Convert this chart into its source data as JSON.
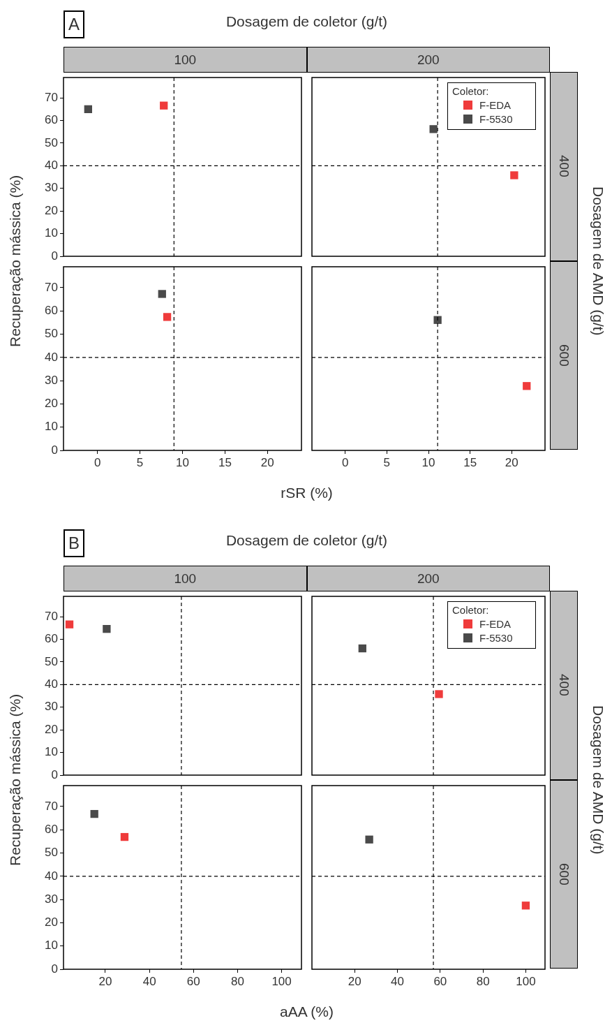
{
  "chart_data": [
    {
      "type": "scatter",
      "title": "100",
      "ylabel": "Recuperação mássica (%)",
      "annotations": [
        "A",
        "Dosagem de coletor (g/t)"
      ],
      "xlim": [
        -4,
        24
      ],
      "xticks": [
        0,
        5,
        10,
        15,
        20
      ],
      "ylim": [
        0,
        79
      ],
      "yticks": [
        0,
        10,
        20,
        30,
        40,
        50,
        60,
        70
      ],
      "tick_labels": "y",
      "marker": "square",
      "grid": false,
      "series": [
        {
          "color": "#ef3b3b",
          "x": [
            7.8
          ],
          "values": [
            66.6
          ]
        },
        {
          "color": "#4a4a4a",
          "x": [
            -1.1
          ],
          "values": [
            65
          ]
        }
      ],
      "ref_lines": [
        {
          "axis": "x",
          "value": 9,
          "line_style": "dashed",
          "color": "#000000"
        },
        {
          "axis": "y",
          "value": 40,
          "line_style": "dashed",
          "color": "#000000"
        }
      ]
    },
    {
      "type": "scatter",
      "title": "200",
      "y2label": "400",
      "annotations": [
        "Dosagem de AMD (g/t)"
      ],
      "xlim": [
        -4,
        24
      ],
      "xticks": [
        0,
        5,
        10,
        15,
        20
      ],
      "ylim": [
        0,
        79
      ],
      "yticks": [
        0,
        10,
        20,
        30,
        40,
        50,
        60,
        70
      ],
      "tick_labels": false,
      "marker": "square",
      "grid": false,
      "legend": "top right",
      "legend_title": "Coletor:",
      "series": [
        {
          "name": "F-EDA",
          "color": "#ef3b3b",
          "x": [
            20.3
          ],
          "values": [
            35.8
          ]
        },
        {
          "name": "F-5530",
          "color": "#4a4a4a",
          "x": [
            10.6
          ],
          "values": [
            56.2
          ]
        }
      ],
      "ref_lines": [
        {
          "axis": "x",
          "value": 11.1,
          "line_style": "dashed",
          "color": "#000000"
        },
        {
          "axis": "y",
          "value": 40,
          "line_style": "dashed",
          "color": "#000000"
        }
      ]
    },
    {
      "type": "scatter",
      "xlabel": "rSR (%)",
      "xlim": [
        -4,
        24
      ],
      "xticks": [
        0,
        5,
        10,
        15,
        20
      ],
      "ylim": [
        0,
        79
      ],
      "yticks": [
        0,
        10,
        20,
        30,
        40,
        50,
        60,
        70
      ],
      "marker": "square",
      "grid": false,
      "series": [
        {
          "color": "#ef3b3b",
          "x": [
            8.2
          ],
          "values": [
            57.4
          ]
        },
        {
          "color": "#4a4a4a",
          "x": [
            7.6
          ],
          "values": [
            67.3
          ]
        }
      ],
      "ref_lines": [
        {
          "axis": "x",
          "value": 9,
          "line_style": "dashed",
          "color": "#000000"
        },
        {
          "axis": "y",
          "value": 40,
          "line_style": "dashed",
          "color": "#000000"
        }
      ]
    },
    {
      "type": "scatter",
      "y2label": "600",
      "xlim": [
        -4,
        24
      ],
      "xticks": [
        0,
        5,
        10,
        15,
        20
      ],
      "ylim": [
        0,
        79
      ],
      "yticks": [
        0,
        10,
        20,
        30,
        40,
        50,
        60,
        70
      ],
      "tick_labels": "x",
      "marker": "square",
      "grid": false,
      "series": [
        {
          "color": "#ef3b3b",
          "x": [
            21.8
          ],
          "values": [
            27.7
          ]
        },
        {
          "color": "#4a4a4a",
          "x": [
            11.1
          ],
          "values": [
            56.1
          ]
        }
      ],
      "ref_lines": [
        {
          "axis": "x",
          "value": 11.1,
          "line_style": "dashed",
          "color": "#000000"
        },
        {
          "axis": "y",
          "value": 40,
          "line_style": "dashed",
          "color": "#000000"
        }
      ]
    },
    {
      "type": "scatter",
      "title": "100",
      "ylabel": "Recuperação mássica (%)",
      "annotations": [
        "B",
        "Dosagem de coletor (g/t)"
      ],
      "xlim": [
        1,
        109
      ],
      "xticks": [
        20,
        40,
        60,
        80,
        100
      ],
      "ylim": [
        0,
        79
      ],
      "yticks": [
        0,
        10,
        20,
        30,
        40,
        50,
        60,
        70
      ],
      "tick_labels": "y",
      "marker": "square",
      "grid": false,
      "series": [
        {
          "color": "#ef3b3b",
          "x": [
            3.7
          ],
          "values": [
            66.6
          ]
        },
        {
          "color": "#4a4a4a",
          "x": [
            20.6
          ],
          "values": [
            64.6
          ]
        }
      ],
      "ref_lines": [
        {
          "axis": "x",
          "value": 54.5,
          "line_style": "dashed",
          "color": "#000000"
        },
        {
          "axis": "y",
          "value": 40,
          "line_style": "dashed",
          "color": "#000000"
        }
      ]
    },
    {
      "type": "scatter",
      "title": "200",
      "y2label": "400",
      "annotations": [
        "Dosagem de AMD (g/t)"
      ],
      "xlim": [
        0,
        109
      ],
      "xticks": [
        20,
        40,
        60,
        80,
        100
      ],
      "ylim": [
        0,
        79
      ],
      "yticks": [
        0,
        10,
        20,
        30,
        40,
        50,
        60,
        70
      ],
      "tick_labels": false,
      "marker": "square",
      "grid": false,
      "legend": "top right",
      "legend_title": "Coletor:",
      "series": [
        {
          "name": "F-EDA",
          "color": "#ef3b3b",
          "x": [
            59.4
          ],
          "values": [
            35.8
          ]
        },
        {
          "name": "F-5530",
          "color": "#4a4a4a",
          "x": [
            23.6
          ],
          "values": [
            56
          ]
        }
      ],
      "ref_lines": [
        {
          "axis": "x",
          "value": 56.8,
          "line_style": "dashed",
          "color": "#000000"
        },
        {
          "axis": "y",
          "value": 40,
          "line_style": "dashed",
          "color": "#000000"
        }
      ]
    },
    {
      "type": "scatter",
      "xlabel": "aAA (%)",
      "xlim": [
        1,
        109
      ],
      "xticks": [
        20,
        40,
        60,
        80,
        100
      ],
      "ylim": [
        0,
        79
      ],
      "yticks": [
        0,
        10,
        20,
        30,
        40,
        50,
        60,
        70
      ],
      "marker": "square",
      "grid": false,
      "series": [
        {
          "color": "#ef3b3b",
          "x": [
            28.7
          ],
          "values": [
            56.9
          ]
        },
        {
          "color": "#4a4a4a",
          "x": [
            15
          ],
          "values": [
            66.8
          ]
        }
      ],
      "ref_lines": [
        {
          "axis": "x",
          "value": 54.5,
          "line_style": "dashed",
          "color": "#000000"
        },
        {
          "axis": "y",
          "value": 40,
          "line_style": "dashed",
          "color": "#000000"
        }
      ]
    },
    {
      "type": "scatter",
      "y2label": "600",
      "xlim": [
        0,
        109
      ],
      "xticks": [
        20,
        40,
        60,
        80,
        100
      ],
      "ylim": [
        0,
        79
      ],
      "yticks": [
        0,
        10,
        20,
        30,
        40,
        50,
        60,
        70
      ],
      "tick_labels": "x",
      "marker": "square",
      "grid": false,
      "series": [
        {
          "color": "#ef3b3b",
          "x": [
            100
          ],
          "values": [
            27.4
          ]
        },
        {
          "color": "#4a4a4a",
          "x": [
            26.8
          ],
          "values": [
            55.8
          ]
        }
      ],
      "ref_lines": [
        {
          "axis": "x",
          "value": 56.8,
          "line_style": "dashed",
          "color": "#000000"
        },
        {
          "axis": "y",
          "value": 40,
          "line_style": "dashed",
          "color": "#000000"
        }
      ]
    }
  ]
}
